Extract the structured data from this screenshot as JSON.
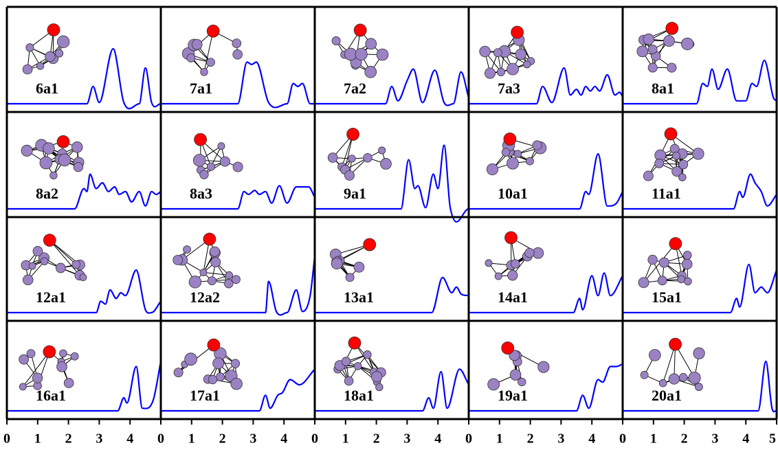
{
  "chart_data": [
    {
      "type": "line",
      "title": "6a1",
      "color": "#0000ff",
      "xlim": [
        0,
        5
      ],
      "ylim": [
        0,
        1.2
      ],
      "x": [
        0,
        2.6,
        2.8,
        3.0,
        3.45,
        3.8,
        4.3,
        4.5,
        4.7,
        5
      ],
      "values": [
        0,
        0,
        0.3,
        0.02,
        0.95,
        0.02,
        0,
        0.62,
        0.02,
        0
      ]
    },
    {
      "type": "line",
      "title": "7a1",
      "color": "#0000ff",
      "xlim": [
        0,
        5
      ],
      "ylim": [
        0,
        1.2
      ],
      "x": [
        0,
        2.5,
        2.8,
        2.95,
        3.1,
        3.5,
        4.1,
        4.3,
        4.45,
        4.6,
        4.85,
        5
      ],
      "values": [
        0,
        0,
        0.72,
        0.68,
        0.72,
        0.02,
        0,
        0.35,
        0.3,
        0.35,
        0,
        0
      ]
    },
    {
      "type": "line",
      "title": "7a2",
      "color": "#0000ff",
      "xlim": [
        0,
        5
      ],
      "ylim": [
        0,
        1.2
      ],
      "x": [
        0,
        2.3,
        2.5,
        2.7,
        3.0,
        3.2,
        3.5,
        3.9,
        4.2,
        4.5,
        4.75,
        5
      ],
      "values": [
        0,
        0,
        0.3,
        0.05,
        0.4,
        0.6,
        0.02,
        0.58,
        0.02,
        0,
        0.55,
        0.1
      ]
    },
    {
      "type": "line",
      "title": "7a3",
      "color": "#0000ff",
      "xlim": [
        0,
        5
      ],
      "ylim": [
        0,
        1.2
      ],
      "x": [
        0,
        2.2,
        2.4,
        2.7,
        3.1,
        3.3,
        3.5,
        3.65,
        3.8,
        3.95,
        4.1,
        4.25,
        4.5,
        4.75,
        4.9,
        5
      ],
      "values": [
        0,
        0,
        0.3,
        0.02,
        0.62,
        0.15,
        0.25,
        0.15,
        0.3,
        0.22,
        0.3,
        0.22,
        0.5,
        0.15,
        0.2,
        0.12
      ]
    },
    {
      "type": "line",
      "title": "8a1",
      "color": "#0000ff",
      "xlim": [
        0,
        5
      ],
      "ylim": [
        0,
        1.2
      ],
      "x": [
        0,
        2.4,
        2.6,
        2.75,
        2.9,
        3.1,
        3.4,
        3.7,
        4.0,
        4.2,
        4.35,
        4.6,
        4.9,
        5
      ],
      "values": [
        0,
        0,
        0.35,
        0.3,
        0.6,
        0.25,
        0.6,
        0.05,
        0.05,
        0.35,
        0.3,
        0.75,
        0.1,
        0.05
      ]
    },
    {
      "type": "line",
      "title": "8a2",
      "color": "#0000ff",
      "xlim": [
        0,
        5
      ],
      "ylim": [
        0,
        1.2
      ],
      "x": [
        0,
        2.2,
        2.5,
        2.6,
        2.7,
        2.9,
        3.1,
        3.3,
        3.5,
        3.65,
        3.85,
        4.05,
        4.3,
        4.5,
        4.7,
        4.85,
        5
      ],
      "values": [
        0,
        0,
        0.35,
        0.3,
        0.6,
        0.35,
        0.45,
        0.3,
        0.38,
        0.25,
        0.3,
        0.12,
        0.3,
        0.05,
        0.3,
        0.25,
        0.3
      ]
    },
    {
      "type": "line",
      "title": "8a3",
      "color": "#0000ff",
      "xlim": [
        0,
        5
      ],
      "ylim": [
        0,
        1.2
      ],
      "x": [
        0,
        2.5,
        2.7,
        2.85,
        3.05,
        3.2,
        3.4,
        3.6,
        3.85,
        4.1,
        4.4,
        4.8,
        5
      ],
      "values": [
        0,
        0,
        0.3,
        0.25,
        0.32,
        0.25,
        0.3,
        0.1,
        0.4,
        0.1,
        0.38,
        0.38,
        0.2
      ]
    },
    {
      "type": "line",
      "title": "9a1",
      "color": "#0000ff",
      "xlim": [
        0,
        5
      ],
      "ylim": [
        0,
        1.2
      ],
      "x": [
        0,
        2.8,
        3.05,
        3.25,
        3.35,
        3.6,
        3.85,
        4.0,
        4.2,
        4.4,
        5
      ],
      "values": [
        0,
        0,
        0.85,
        0.35,
        0.4,
        0.02,
        0.6,
        0.35,
        1.1,
        0.02,
        0
      ]
    },
    {
      "type": "line",
      "title": "10a1",
      "color": "#0000ff",
      "xlim": [
        0,
        5
      ],
      "ylim": [
        0,
        1.2
      ],
      "x": [
        0,
        3.6,
        3.8,
        3.9,
        4.2,
        4.5,
        4.8,
        5
      ],
      "values": [
        0,
        0,
        0.3,
        0.25,
        0.95,
        0.05,
        0.1,
        0.3
      ]
    },
    {
      "type": "line",
      "title": "11a1",
      "color": "#0000ff",
      "xlim": [
        0,
        5
      ],
      "ylim": [
        0,
        1.2
      ],
      "x": [
        0,
        3.6,
        3.8,
        3.9,
        4.15,
        4.3,
        4.5,
        4.7,
        5
      ],
      "values": [
        0,
        0,
        0.3,
        0.2,
        0.6,
        0.45,
        0.3,
        0.05,
        0.25
      ]
    },
    {
      "type": "line",
      "title": "12a1",
      "color": "#0000ff",
      "xlim": [
        0,
        5
      ],
      "ylim": [
        0,
        1.2
      ],
      "x": [
        0,
        2.9,
        3.05,
        3.2,
        3.35,
        3.55,
        3.7,
        3.85,
        4.2,
        4.5,
        4.7,
        5
      ],
      "values": [
        0,
        0,
        0.2,
        0.15,
        0.4,
        0.25,
        0.35,
        0.3,
        0.75,
        0.05,
        0,
        0.2
      ]
    },
    {
      "type": "line",
      "title": "12a2",
      "color": "#0000ff",
      "xlim": [
        0,
        5
      ],
      "ylim": [
        0,
        1.2
      ],
      "x": [
        0,
        3.4,
        3.5,
        3.75,
        4.1,
        4.4,
        4.6,
        4.85,
        5
      ],
      "values": [
        0,
        0,
        0.55,
        0.02,
        0,
        0.4,
        0.02,
        0.3,
        1.0
      ]
    },
    {
      "type": "line",
      "title": "13a1",
      "color": "#0000ff",
      "xlim": [
        0,
        5
      ],
      "ylim": [
        0,
        1.2
      ],
      "x": [
        0,
        3.8,
        4.15,
        4.45,
        4.6,
        4.75,
        5
      ],
      "values": [
        0,
        0,
        0.62,
        0.35,
        0.45,
        0.33,
        0.3
      ]
    },
    {
      "type": "line",
      "title": "14a1",
      "color": "#0000ff",
      "xlim": [
        0,
        5
      ],
      "ylim": [
        0,
        1.2
      ],
      "x": [
        0,
        3.4,
        3.6,
        3.7,
        4.0,
        4.2,
        4.4,
        4.6,
        5
      ],
      "values": [
        0,
        0,
        0.25,
        0.05,
        0.65,
        0.3,
        0.7,
        0.3,
        0.65
      ]
    },
    {
      "type": "line",
      "title": "15a1",
      "color": "#0000ff",
      "xlim": [
        0,
        5
      ],
      "ylim": [
        0,
        1.2
      ],
      "x": [
        0,
        3.5,
        3.7,
        3.8,
        4.1,
        4.3,
        4.5,
        4.7,
        5
      ],
      "values": [
        0,
        0,
        0.25,
        0.1,
        0.85,
        0.35,
        0.45,
        0.35,
        0.75
      ]
    },
    {
      "type": "line",
      "title": "16a1",
      "color": "#0000ff",
      "xlim": [
        0,
        5
      ],
      "ylim": [
        0,
        1.2
      ],
      "x": [
        0,
        3.6,
        3.8,
        3.9,
        4.2,
        4.4,
        4.75,
        5
      ],
      "values": [
        0,
        0,
        0.25,
        0.15,
        0.85,
        0.05,
        0.2,
        0.95
      ],
      "xticks": [
        0,
        1,
        2,
        3,
        4
      ]
    },
    {
      "type": "line",
      "title": "17a1",
      "color": "#0000ff",
      "xlim": [
        0,
        5
      ],
      "ylim": [
        0,
        1.2
      ],
      "x": [
        0,
        3.2,
        3.4,
        3.55,
        3.8,
        3.95,
        4.2,
        4.5,
        5
      ],
      "values": [
        0,
        0,
        0.3,
        0.05,
        0.3,
        0.35,
        0.6,
        0.5,
        0.8
      ],
      "xticks": [
        0,
        1,
        2,
        3,
        4
      ]
    },
    {
      "type": "line",
      "title": "18a1",
      "color": "#0000ff",
      "xlim": [
        0,
        5
      ],
      "ylim": [
        0,
        1.2
      ],
      "x": [
        0,
        3.5,
        3.7,
        3.85,
        4.1,
        4.3,
        4.7,
        5
      ],
      "values": [
        0,
        0,
        0.25,
        0.05,
        0.75,
        0.05,
        0.8,
        0.5
      ],
      "xticks": [
        0,
        1,
        2,
        3,
        4
      ]
    },
    {
      "type": "line",
      "title": "19a1",
      "color": "#0000ff",
      "xlim": [
        0,
        5
      ],
      "ylim": [
        0,
        1.2
      ],
      "x": [
        0,
        3.5,
        3.7,
        3.9,
        4.2,
        4.35,
        4.6,
        4.8,
        5
      ],
      "values": [
        0,
        0,
        0.3,
        0.05,
        0.6,
        0.55,
        0.85,
        0.85,
        0.9
      ],
      "xticks": [
        0,
        1,
        2,
        3,
        4
      ]
    },
    {
      "type": "line",
      "title": "20a1",
      "color": "#0000ff",
      "xlim": [
        0,
        5
      ],
      "ylim": [
        0,
        1.2
      ],
      "x": [
        0,
        4.4,
        4.65,
        4.85,
        5
      ],
      "values": [
        0,
        0,
        0.95,
        0.05,
        0
      ],
      "xticks": [
        0,
        1,
        2,
        3,
        4,
        5
      ]
    }
  ]
}
